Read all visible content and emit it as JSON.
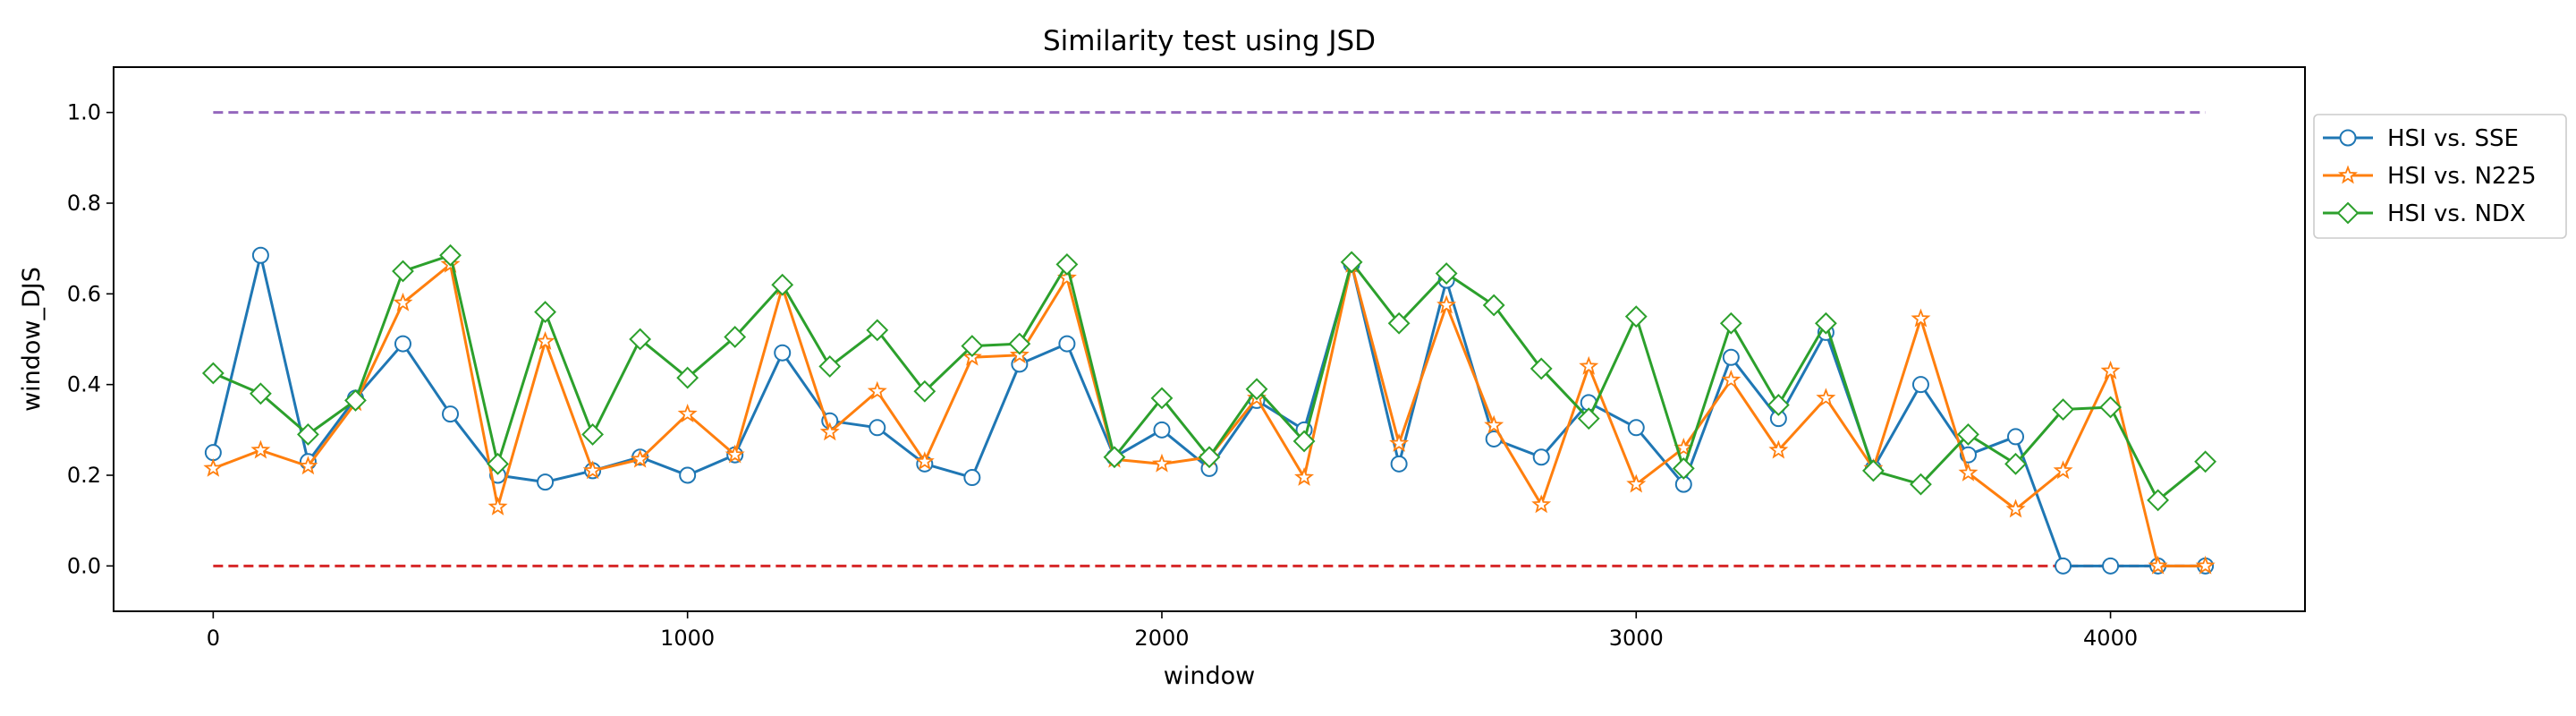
{
  "chart_data": {
    "type": "line",
    "title": "Similarity test using JSD",
    "xlabel": "window",
    "ylabel": "window_DJS",
    "xlim": [
      -210,
      4410
    ],
    "ylim": [
      -0.1,
      1.1
    ],
    "xticks": [
      0,
      1000,
      2000,
      3000,
      4000
    ],
    "yticks": [
      0.0,
      0.2,
      0.4,
      0.6,
      0.8,
      1.0
    ],
    "xtick_labels": [
      "0",
      "1000",
      "2000",
      "3000",
      "4000"
    ],
    "ytick_labels": [
      "0.0",
      "0.2",
      "0.4",
      "0.6",
      "0.8",
      "1.0"
    ],
    "grid": false,
    "legend_position": "right, outside plot",
    "x": [
      0,
      100,
      200,
      300,
      400,
      500,
      600,
      700,
      800,
      900,
      1000,
      1100,
      1200,
      1300,
      1400,
      1500,
      1600,
      1700,
      1800,
      1900,
      2000,
      2100,
      2200,
      2300,
      2400,
      2500,
      2600,
      2700,
      2800,
      2900,
      3000,
      3100,
      3200,
      3300,
      3400,
      3500,
      3600,
      3700,
      3800,
      3900,
      4000,
      4100,
      4200
    ],
    "series": [
      {
        "name": "HSI vs. SSE",
        "color": "#1f77b4",
        "marker": "circle",
        "values": [
          0.25,
          0.685,
          0.23,
          0.37,
          0.49,
          0.335,
          0.2,
          0.185,
          0.21,
          0.24,
          0.2,
          0.245,
          0.47,
          0.32,
          0.305,
          0.225,
          0.195,
          0.445,
          0.49,
          0.24,
          0.3,
          0.215,
          0.365,
          0.3,
          0.665,
          0.225,
          0.63,
          0.28,
          0.24,
          0.36,
          0.305,
          0.18,
          0.46,
          0.325,
          0.515,
          0.215,
          0.4,
          0.245,
          0.285,
          0.0,
          0.0,
          0.0,
          0.0
        ]
      },
      {
        "name": "HSI vs. N225",
        "color": "#ff7f0e",
        "marker": "star",
        "values": [
          0.215,
          0.255,
          0.22,
          0.36,
          0.58,
          0.665,
          0.13,
          0.495,
          0.21,
          0.235,
          0.335,
          0.245,
          0.615,
          0.295,
          0.385,
          0.23,
          0.46,
          0.465,
          0.635,
          0.235,
          0.225,
          0.24,
          0.37,
          0.195,
          0.665,
          0.27,
          0.575,
          0.31,
          0.135,
          0.44,
          0.18,
          0.26,
          0.41,
          0.255,
          0.37,
          0.215,
          0.545,
          0.205,
          0.125,
          0.21,
          0.43,
          0.0,
          0.0
        ]
      },
      {
        "name": "HSI vs. NDX",
        "color": "#2ca02c",
        "marker": "diamond",
        "values": [
          0.425,
          0.38,
          0.29,
          0.365,
          0.65,
          0.685,
          0.225,
          0.56,
          0.29,
          0.5,
          0.415,
          0.505,
          0.62,
          0.44,
          0.52,
          0.385,
          0.485,
          0.49,
          0.665,
          0.24,
          0.37,
          0.24,
          0.39,
          0.275,
          0.67,
          0.535,
          0.645,
          0.575,
          0.435,
          0.325,
          0.55,
          0.215,
          0.535,
          0.355,
          0.535,
          0.21,
          0.18,
          0.29,
          0.225,
          0.345,
          0.35,
          0.145,
          0.23
        ]
      }
    ],
    "reference_lines": [
      {
        "y": 1.0,
        "x_range": [
          0,
          4200
        ],
        "color": "#9467bd",
        "style": "dashed"
      },
      {
        "y": 0.0,
        "x_range": [
          0,
          4200
        ],
        "color": "#d62728",
        "style": "dashed"
      }
    ]
  }
}
